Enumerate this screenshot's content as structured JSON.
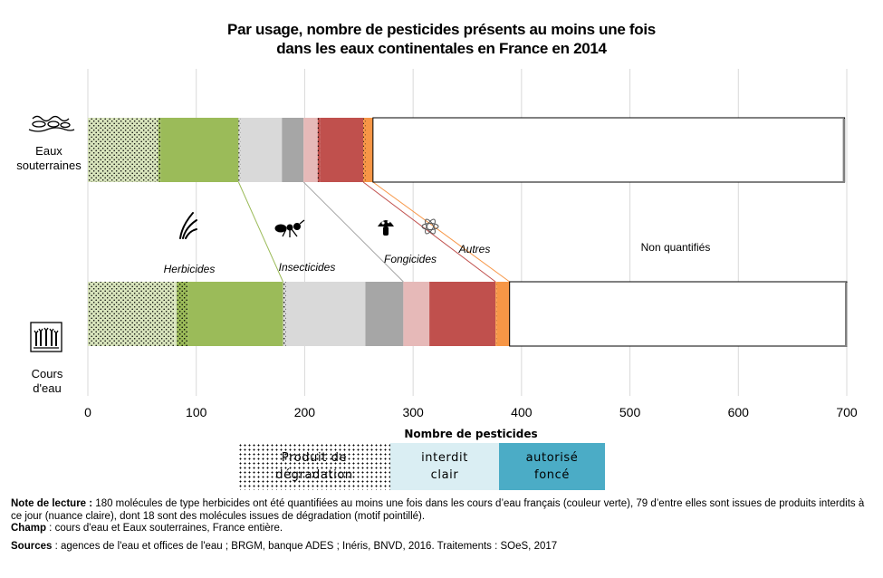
{
  "title": {
    "line1": "Par usage, nombre de pesticides présents au moins une fois",
    "line2": "dans les eaux continentales en France en 2014"
  },
  "chart_data": {
    "type": "bar",
    "orientation": "horizontal",
    "stacked": true,
    "categories": [
      "Eaux souterraines",
      "Cours d'eau"
    ],
    "category_labels": [
      [
        "Eaux",
        "souterraines"
      ],
      [
        "Cours",
        "d'eau"
      ]
    ],
    "category_icons": [
      "groundwater-icon",
      "river-icon"
    ],
    "xlim": [
      0,
      700
    ],
    "xticks": [
      0,
      100,
      200,
      300,
      400,
      500,
      600,
      700
    ],
    "xlabel": "Nombre de pesticides",
    "grid": "vertical",
    "usage_labels": [
      "Herbicides",
      "Insecticides",
      "Fongicides",
      "Autres",
      "Non quantifiés"
    ],
    "usage_icons": [
      "grass-icon",
      "ant-icon",
      "mushroom-icon",
      "atom-icon"
    ],
    "segments": [
      {
        "usage": "Herbicides",
        "status": "Produit de dégradation",
        "color": "#d8e4bc",
        "values": [
          65,
          80
        ]
      },
      {
        "usage": "Herbicides",
        "status": "interdit clair",
        "color": "#d8e4bc",
        "values": [
          0,
          2
        ]
      },
      {
        "usage": "Herbicides",
        "status": "Produit de dégradation",
        "color": "#9bbb59",
        "values": [
          2,
          10
        ]
      },
      {
        "usage": "Herbicides",
        "status": "autorisé foncé",
        "color": "#9bbb59",
        "values": [
          72,
          88
        ]
      },
      {
        "usage": "Insecticides",
        "status": "Produit de dégradation",
        "color": "#d9d9d9",
        "values": [
          2,
          3
        ]
      },
      {
        "usage": "Insecticides",
        "status": "interdit clair",
        "color": "#d9d9d9",
        "values": [
          38,
          73
        ]
      },
      {
        "usage": "Insecticides",
        "status": "autorisé foncé",
        "color": "#a6a6a6",
        "values": [
          20,
          35
        ]
      },
      {
        "usage": "Fongicides",
        "status": "interdit clair",
        "color": "#e6b9b8",
        "values": [
          13,
          24
        ]
      },
      {
        "usage": "Fongicides",
        "status": "Produit de dégradation",
        "color": "#c0504d",
        "values": [
          2,
          0
        ]
      },
      {
        "usage": "Fongicides",
        "status": "autorisé foncé",
        "color": "#c0504d",
        "values": [
          40,
          61
        ]
      },
      {
        "usage": "Autres",
        "status": "Produit de dégradation",
        "color": "#f79646",
        "values": [
          2,
          1
        ]
      },
      {
        "usage": "Autres",
        "status": "autorisé foncé",
        "color": "#f79646",
        "values": [
          7,
          12
        ]
      },
      {
        "usage": "Non quantifiés",
        "status": "",
        "color": "#ffffff",
        "values": [
          435,
          311
        ]
      }
    ]
  },
  "legend": {
    "title": "Nombre de pesticides",
    "items": [
      {
        "label_line1": "Produit de",
        "label_line2": "dégradation",
        "style": "dotted",
        "color": "#ffffff"
      },
      {
        "label_line1": "interdit",
        "label_line2": "clair",
        "style": "solid",
        "color": "#daeef3"
      },
      {
        "label_line1": "autorisé",
        "label_line2": "foncé",
        "style": "solid",
        "color": "#4bacc6"
      }
    ]
  },
  "notes": {
    "lecture_label": "Note de lecture :",
    "lecture_text": " 180 molécules de type herbicides ont été quantifiées au moins une fois dans les cours d’eau français (couleur verte), 79 d’entre elles sont issues de produits interdits à ce jour (nuance claire), dont 18 sont des molécules issues de dégradation (motif pointillé).",
    "champ_label": "Champ",
    "champ_text": " : cours d'eau et Eaux souterraines, France entière.",
    "sources_label": "Sources",
    "sources_text": " : agences de l'eau et offices de l'eau ; BRGM, banque ADES ; Inéris, BNVD, 2016. Traitements : SOeS, 2017"
  }
}
